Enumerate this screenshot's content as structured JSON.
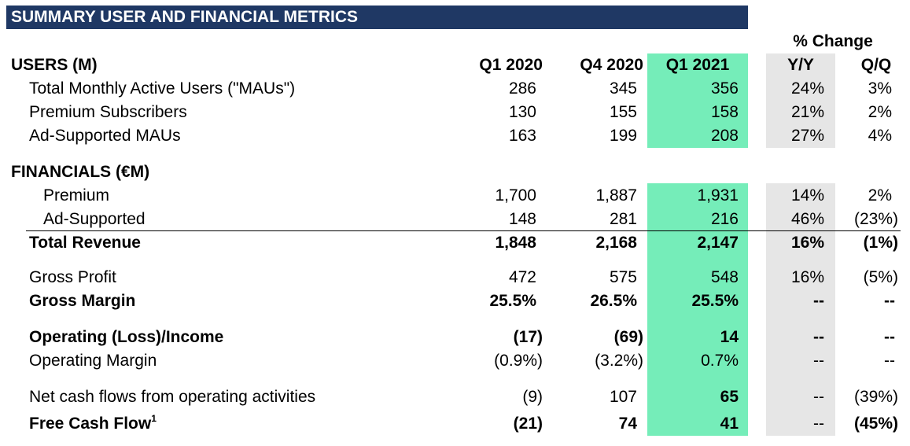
{
  "title": "SUMMARY USER AND FINANCIAL METRICS",
  "change_header": "% Change",
  "users_header": "USERS (M)",
  "financials_header": "FINANCIALS (€M)",
  "columns": {
    "q1_2020": "Q1 2020",
    "q4_2020": "Q4 2020",
    "q1_2021": "Q1 2021",
    "yy": "Y/Y",
    "qq": "Q/Q"
  },
  "colors": {
    "banner": "#1f3864",
    "highlight": "#75edb9",
    "change_shade": "#e6e6e6"
  },
  "rows": [
    {
      "label": "Total Monthly Active Users (\"MAUs\")",
      "q1_2020": "286",
      "q4_2020": "345",
      "q1_2021": "356",
      "yy": "24%",
      "qq": "3%"
    },
    {
      "label": "Premium Subscribers",
      "q1_2020": "130",
      "q4_2020": "155",
      "q1_2021": "158",
      "yy": "21%",
      "qq": "2%"
    },
    {
      "label": "Ad-Supported MAUs",
      "q1_2020": "163",
      "q4_2020": "199",
      "q1_2021": "208",
      "yy": "27%",
      "qq": "4%"
    },
    {
      "label": "Premium",
      "q1_2020": "1,700",
      "q4_2020": "1,887",
      "q1_2021": "1,931",
      "yy": "14%",
      "qq": "2%"
    },
    {
      "label": "Ad-Supported",
      "q1_2020": "148",
      "q4_2020": "281",
      "q1_2021": "216",
      "yy": "46%",
      "qq": "(23%)"
    },
    {
      "label": "Total Revenue",
      "q1_2020": "1,848",
      "q4_2020": "2,168",
      "q1_2021": "2,147",
      "yy": "16%",
      "qq": "(1%)"
    },
    {
      "label": "Gross Profit",
      "q1_2020": "472",
      "q4_2020": "575",
      "q1_2021": "548",
      "yy": "16%",
      "qq": "(5%)"
    },
    {
      "label": "Gross Margin",
      "q1_2020": "25.5%",
      "q4_2020": "26.5%",
      "q1_2021": "25.5%",
      "yy": "--",
      "qq": "--"
    },
    {
      "label": "Operating (Loss)/Income",
      "q1_2020": "(17)",
      "q4_2020": "(69)",
      "q1_2021": "14",
      "yy": "--",
      "qq": "--"
    },
    {
      "label": "Operating Margin",
      "q1_2020": "(0.9%)",
      "q4_2020": "(3.2%)",
      "q1_2021": "0.7%",
      "yy": "--",
      "qq": "--"
    },
    {
      "label": "Net cash flows from operating activities",
      "q1_2020": "(9)",
      "q4_2020": "107",
      "q1_2021": "65",
      "yy": "--",
      "qq": "(39%)"
    },
    {
      "label": "Free Cash Flow",
      "footnote": "1",
      "q1_2020": "(21)",
      "q4_2020": "74",
      "q1_2021": "41",
      "yy": "--",
      "qq": "(45%)"
    }
  ]
}
